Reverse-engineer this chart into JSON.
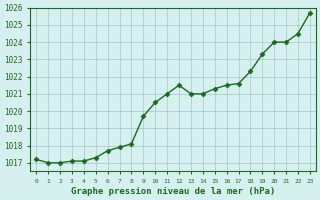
{
  "x": [
    0,
    1,
    2,
    3,
    4,
    5,
    6,
    7,
    8,
    9,
    10,
    11,
    12,
    13,
    14,
    15,
    16,
    17,
    18,
    19,
    20,
    21,
    22,
    23
  ],
  "y": [
    1017.2,
    1017.0,
    1017.0,
    1017.1,
    1017.1,
    1017.3,
    1017.7,
    1017.9,
    1018.1,
    1019.7,
    1020.5,
    1021.0,
    1021.5,
    1021.0,
    1021.0,
    1021.3,
    1021.5,
    1021.6,
    1022.3,
    1023.3,
    1024.0,
    1024.0,
    1024.5,
    1025.7
  ],
  "ylim_min": 1016.5,
  "ylim_max": 1026.0,
  "yticks": [
    1017,
    1018,
    1019,
    1020,
    1021,
    1022,
    1023,
    1024,
    1025,
    1026
  ],
  "xlabel": "Graphe pression niveau de la mer (hPa)",
  "line_color": "#1a6b1a",
  "marker_color": "#1a6b1a",
  "bg_color": "#d6f0f0",
  "grid_color": "#a0c8c8",
  "tick_label_color": "#1a6b1a",
  "xlabel_color": "#1a6b1a",
  "axis_color": "#1a6b1a"
}
